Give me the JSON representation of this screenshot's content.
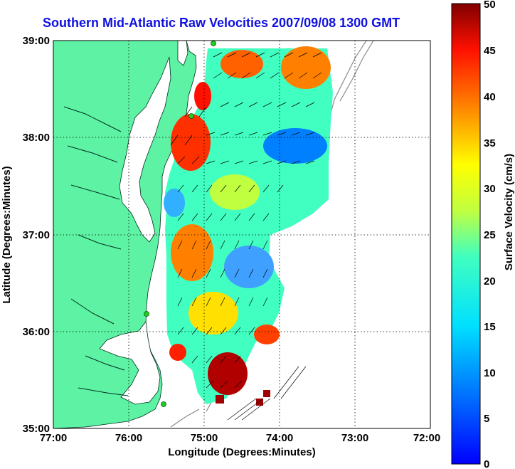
{
  "title": "Southern Mid-Atlantic Raw Velocities 2007/09/08 1300 GMT",
  "x_axis": {
    "label": "Longitude (Degrees:Minutes)",
    "ticks": [
      "77:00",
      "76:00",
      "75:00",
      "74:00",
      "73:00",
      "72:00"
    ]
  },
  "y_axis": {
    "label": "Latitude (Degrees:Minutes)",
    "ticks": [
      "39:00",
      "38:00",
      "37:00",
      "36:00",
      "35:00"
    ]
  },
  "colorbar": {
    "label": "Surface Velocity (cm/s)",
    "ticks": [
      "50",
      "45",
      "40",
      "35",
      "30",
      "25",
      "20",
      "15",
      "10",
      "5",
      "0"
    ],
    "min": 0,
    "max": 50
  },
  "colors": {
    "land": "#5ef2a4",
    "title": "#1010e0",
    "station": "#22cc22"
  }
}
